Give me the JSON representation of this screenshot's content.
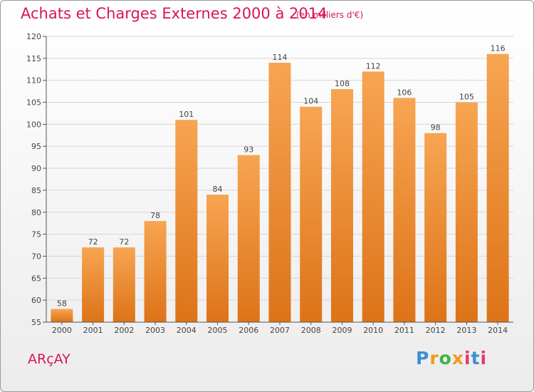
{
  "header": {
    "title": "Achats et Charges Externes 2000 à 2014",
    "subtitle": "(en milliers d'€)"
  },
  "footer": {
    "commune": "ARçAY",
    "brand": "Proxiti",
    "brand_colors": [
      "#3d8fd4",
      "#f29a1f",
      "#3db34a",
      "#f29a1f",
      "#e23d6c",
      "#3d8fd4",
      "#e23d6c"
    ]
  },
  "chart_data": {
    "type": "bar",
    "categories": [
      "2000",
      "2001",
      "2002",
      "2003",
      "2004",
      "2005",
      "2006",
      "2007",
      "2008",
      "2009",
      "2010",
      "2011",
      "2012",
      "2013",
      "2014"
    ],
    "values": [
      58,
      72,
      72,
      78,
      101,
      84,
      93,
      114,
      104,
      108,
      112,
      106,
      98,
      105,
      116
    ],
    "data_labels": [
      "58",
      "72",
      "72",
      "78",
      "101",
      "84",
      "93",
      "114",
      "104",
      "108",
      "112",
      "106",
      "98",
      "105",
      "116"
    ],
    "ylim": [
      55,
      120
    ],
    "yticks": [
      55,
      60,
      65,
      70,
      75,
      80,
      85,
      90,
      95,
      100,
      105,
      110,
      115,
      120
    ],
    "grid": true,
    "bar_color": "#f0912e",
    "grid_color": "#d6d6d6",
    "label_color": "#444444"
  }
}
